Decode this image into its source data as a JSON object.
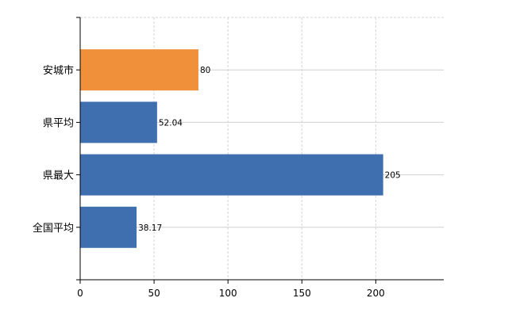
{
  "chart_data": {
    "type": "bar",
    "orientation": "horizontal",
    "categories": [
      "安城市",
      "県平均",
      "県最大",
      "全国平均"
    ],
    "values": [
      80,
      52.04,
      205,
      38.17
    ],
    "data_labels": [
      "80",
      "52.04",
      "205",
      "38.17"
    ],
    "colors": [
      "#f0903a",
      "#3f6fae",
      "#3f6fae",
      "#3f6fae"
    ],
    "xlim": [
      0,
      246
    ],
    "xticks": [
      0,
      50,
      100,
      150,
      200
    ],
    "xtick_labels": [
      "0",
      "50",
      "100",
      "150",
      "200"
    ],
    "grid": true,
    "title": "",
    "xlabel": "",
    "ylabel": ""
  }
}
